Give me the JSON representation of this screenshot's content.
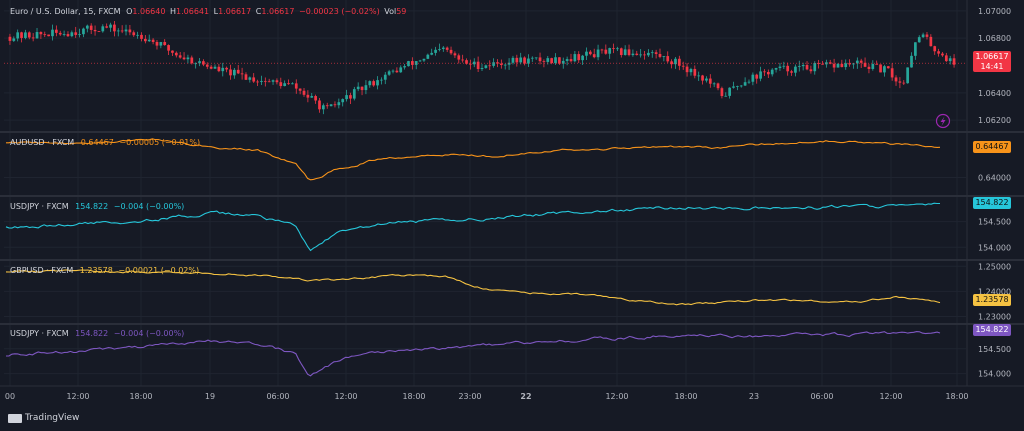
{
  "header": {
    "symbol": "Euro / U.S. Dollar, 15, FXCM",
    "open_label": "O",
    "open": "1.06640",
    "high_label": "H",
    "high": "1.06641",
    "low_label": "L",
    "low": "1.06617",
    "close_label": "C",
    "close": "1.06617",
    "change": "−0.00023 (−0.02%)",
    "vol_label": "Vol",
    "vol": "59"
  },
  "panes": [
    {
      "title": "AUDUSD · FXCM",
      "value": "0.64467",
      "change": "−0.00005 (−0.01%)",
      "color": "#f7931a",
      "tag": "0.64467"
    },
    {
      "title": "USDJPY · FXCM",
      "value": "154.822",
      "change": "−0.004 (−0.00%)",
      "color": "#26c6da",
      "tag": "154.822"
    },
    {
      "title": "GBPUSD · FXCM",
      "value": "1.23578",
      "change": "−0.00021 (−0.02%)",
      "color": "#f5c242",
      "tag": "1.23578"
    },
    {
      "title": "USDJPY · FXCM",
      "value": "154.822",
      "change": "−0.004 (−0.00%)",
      "color": "#7e57c2",
      "tag": "154.822"
    }
  ],
  "price_tag": {
    "price": "1.06617",
    "timer": "14:41",
    "color": "#f23645"
  },
  "chart_data": {
    "type": "line",
    "main": {
      "type": "candlestick",
      "yticks": [
        "1.07000",
        "1.06800",
        "1.06400",
        "1.06200"
      ],
      "ylim": [
        1.0615,
        1.0705
      ],
      "up_color": "#26a69a",
      "down_color": "#f23645"
    },
    "xticks": [
      {
        "label": "00",
        "bold": false
      },
      {
        "label": "12:00",
        "bold": false
      },
      {
        "label": "18:00",
        "bold": false
      },
      {
        "label": "19",
        "bold": false
      },
      {
        "label": "06:00",
        "bold": false
      },
      {
        "label": "12:00",
        "bold": false
      },
      {
        "label": "18:00",
        "bold": false
      },
      {
        "label": "23:00",
        "bold": false
      },
      {
        "label": "22",
        "bold": true
      },
      {
        "label": "12:00",
        "bold": false
      },
      {
        "label": "18:00",
        "bold": false
      },
      {
        "label": "23",
        "bold": false
      },
      {
        "label": "06:00",
        "bold": false
      },
      {
        "label": "12:00",
        "bold": false
      },
      {
        "label": "18:00",
        "bold": false
      }
    ],
    "series": [
      {
        "name": "AUDUSD · FXCM",
        "yticks": [
          "0.64000"
        ],
        "ylim": [
          0.638,
          0.646
        ]
      },
      {
        "name": "USDJPY · FXCM",
        "yticks": [
          "154.500",
          "154.000"
        ],
        "ylim": [
          153.85,
          154.9
        ]
      },
      {
        "name": "GBPUSD · FXCM",
        "yticks": [
          "1.25000",
          "1.24000",
          "1.23000"
        ],
        "ylim": [
          1.229,
          1.2505
        ]
      },
      {
        "name": "USDJPY · FXCM",
        "yticks": [
          "154.500",
          "154.000"
        ],
        "ylim": [
          153.85,
          154.9
        ]
      }
    ]
  },
  "footer": {
    "brand": "TradingView"
  }
}
